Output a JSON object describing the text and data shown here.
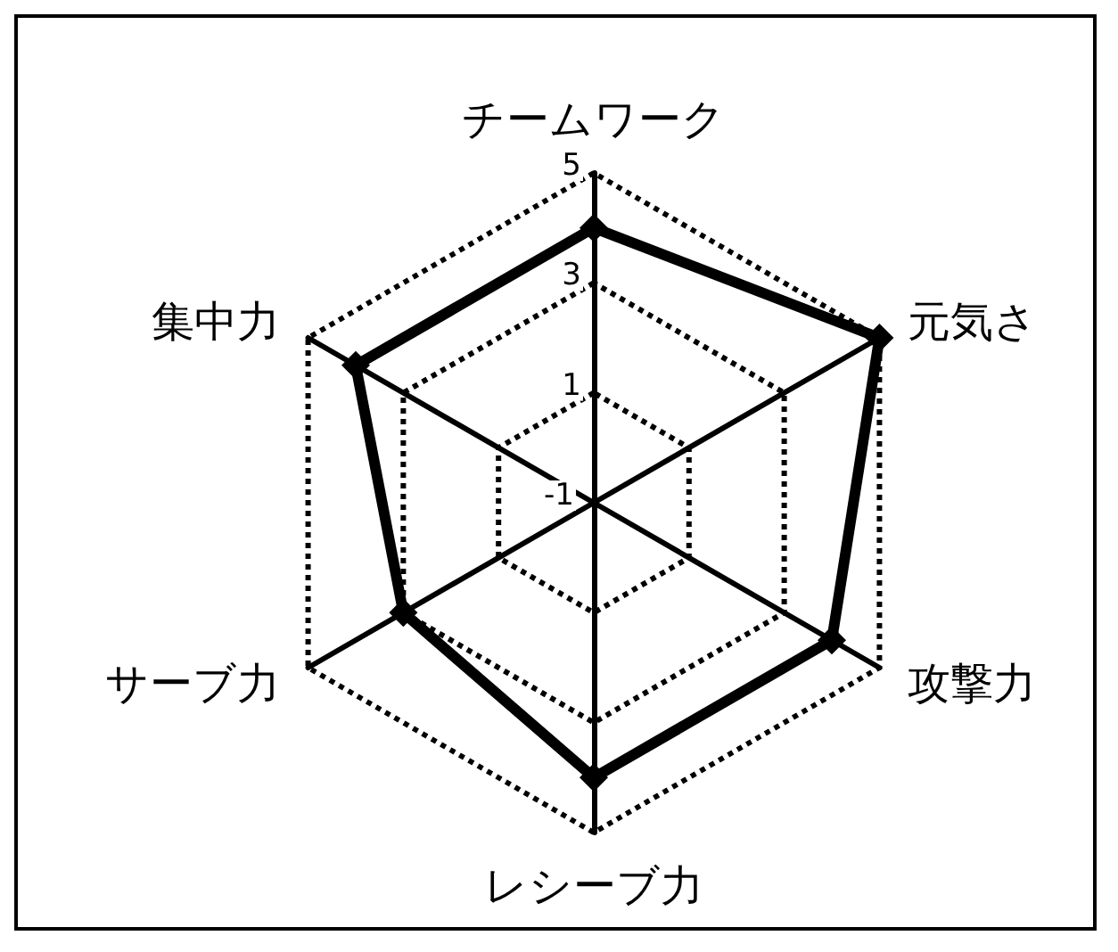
{
  "chart_data": {
    "type": "radar",
    "categories": [
      "チームワーク",
      "元気さ",
      "攻撃力",
      "レシーブ力",
      "サーブ力",
      "集中力"
    ],
    "series": [
      {
        "color": "#000000",
        "values": [
          4,
          5,
          4,
          4,
          3,
          4
        ]
      }
    ],
    "ylim": [
      -1,
      5
    ],
    "yticks": [
      -1,
      1,
      3,
      5
    ],
    "grid": true,
    "marker": "diamond",
    "line_style": "solid"
  }
}
